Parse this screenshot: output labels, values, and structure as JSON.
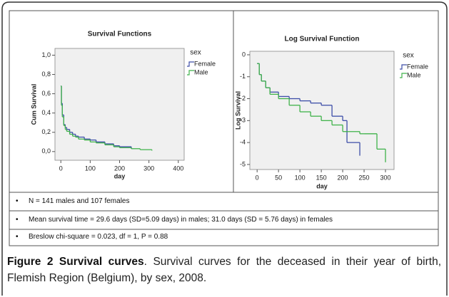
{
  "chart_data": [
    {
      "type": "step",
      "title": "Survival Functions",
      "x_label": "day",
      "y_label": "Cum Survival",
      "legend_title": "sex",
      "x": [
        0,
        2,
        5,
        10,
        15,
        20,
        30,
        40,
        50,
        60,
        80,
        100,
        120,
        150,
        180,
        200,
        240,
        270,
        310
      ],
      "series": [
        {
          "name": "Female",
          "color": "#3d4ea8",
          "values": [
            0.68,
            0.5,
            0.38,
            0.28,
            0.25,
            0.23,
            0.2,
            0.18,
            0.16,
            0.15,
            0.13,
            0.12,
            0.1,
            0.08,
            0.06,
            0.05,
            0.03,
            null,
            null
          ]
        },
        {
          "name": "Male",
          "color": "#3fb24a",
          "values": [
            0.68,
            0.48,
            0.36,
            0.27,
            0.23,
            0.21,
            0.18,
            0.16,
            0.15,
            0.13,
            0.12,
            0.1,
            0.09,
            0.07,
            0.05,
            0.04,
            0.03,
            0.02,
            0.01
          ]
        }
      ],
      "xlim": [
        -20,
        420
      ],
      "xticks": [
        0,
        100,
        200,
        300,
        400
      ],
      "ylim": [
        -0.09,
        1.07
      ],
      "yticks": [
        {
          "value": 0,
          "label": "0,0"
        },
        {
          "value": 0.2,
          "label": "0,2"
        },
        {
          "value": 0.4,
          "label": "0,4"
        },
        {
          "value": 0.6,
          "label": "0,6"
        },
        {
          "value": 0.8,
          "label": "0,8"
        },
        {
          "value": 1,
          "label": "1,0"
        }
      ]
    },
    {
      "type": "step",
      "title": "Log Survival Function",
      "x_label": "day",
      "y_label": "Log Survival",
      "legend_title": "sex",
      "x": [
        0,
        5,
        10,
        20,
        30,
        50,
        75,
        100,
        125,
        150,
        175,
        200,
        210,
        240,
        250,
        280,
        300
      ],
      "series": [
        {
          "name": "Female",
          "color": "#3d4ea8",
          "values": [
            -0.4,
            -0.9,
            -1.2,
            -1.5,
            -1.7,
            -1.9,
            -2.0,
            -2.1,
            -2.2,
            -2.3,
            -2.8,
            -3.0,
            -4.0,
            -4.6,
            null,
            null,
            null
          ]
        },
        {
          "name": "Male",
          "color": "#3fb24a",
          "values": [
            -0.4,
            -0.9,
            -1.2,
            -1.5,
            -1.8,
            -2.0,
            -2.3,
            -2.6,
            -2.8,
            -3.0,
            -3.2,
            -3.5,
            -3.5,
            -3.6,
            -3.6,
            -4.3,
            -4.9
          ]
        }
      ],
      "xlim": [
        -17,
        320
      ],
      "xticks": [
        0,
        50,
        100,
        150,
        200,
        250,
        300
      ],
      "ylim": [
        -5.23,
        0.16
      ],
      "yticks": [
        0,
        -1,
        -2,
        -3,
        -4,
        -5
      ]
    }
  ],
  "notes": [
    "N = 141 males and 107 females",
    "Mean survival time = 29.6 days (SD=5.09 days) in males; 31.0 days (SD = 5.76 days) in females",
    "Breslow chi-square = 0.023, df = 1, P = 0.88"
  ],
  "caption": {
    "label": "Figure 2 Survival curves",
    "text": ". Survival curves for the deceased in their year of birth, Flemish Region (Belgium), by sex, 2008."
  }
}
